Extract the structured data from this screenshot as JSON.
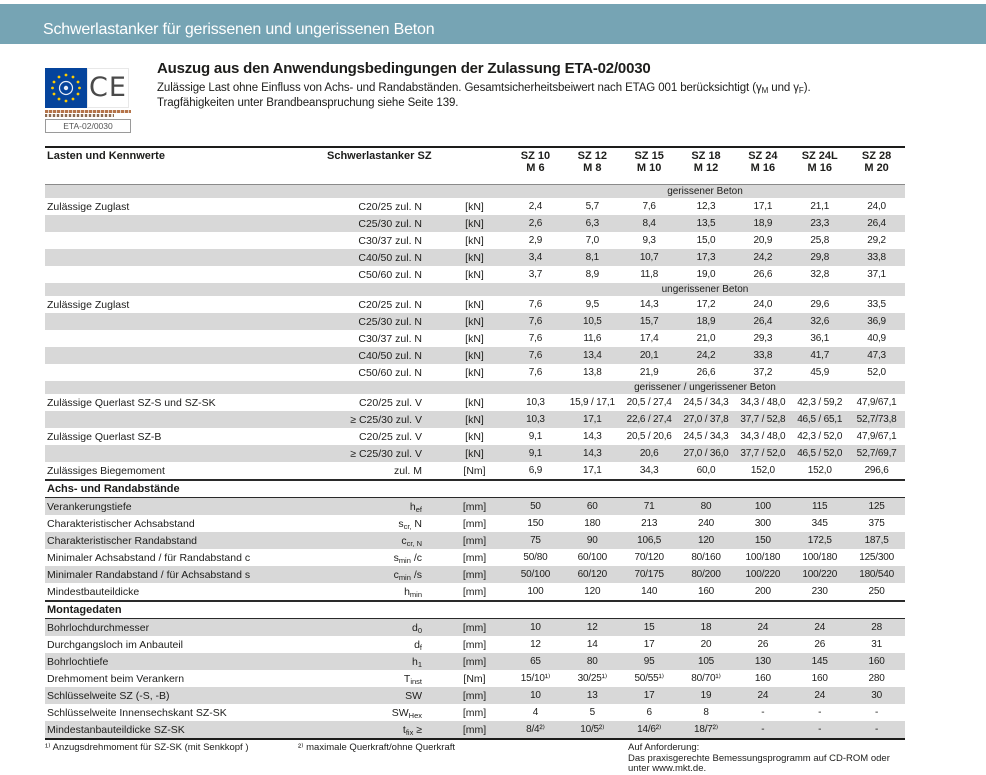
{
  "page": {
    "banner_title": "Schwerlastanker für gerissenen und ungerissenen Beton",
    "accent_color": "#76a4b4",
    "shade_color": "#d8d8d8"
  },
  "approval": {
    "ce_label": "CE",
    "eta_label": "ETA-02/0030"
  },
  "intro": {
    "title": "Auszug aus den Anwendungsbedingungen der Zulassung ETA-02/0030",
    "subtitle_part1": "Zulässige Last ohne Einfluss von Achs- und Randabständen. Gesamtsicherheitsbeiwert nach ETAG 001 berücksichtigt (γ",
    "subtitle_sub1": "M",
    "subtitle_part2": " und γ",
    "subtitle_sub2": "F",
    "subtitle_part3": ").",
    "subtitle_line2": "Tragfähigkeiten unter Brandbeanspruchung siehe Seite 139."
  },
  "table": {
    "header_left": "Lasten und Kennwerte",
    "header_spec": "Schwerlastanker SZ",
    "columns": [
      {
        "l1": "SZ 10",
        "l2": "M 6"
      },
      {
        "l1": "SZ 12",
        "l2": "M 8"
      },
      {
        "l1": "SZ 15",
        "l2": "M 10"
      },
      {
        "l1": "SZ 18",
        "l2": "M 12"
      },
      {
        "l1": "SZ 24",
        "l2": "M 16"
      },
      {
        "l1": "SZ 24L",
        "l2": "M 16"
      },
      {
        "l1": "SZ 28",
        "l2": "M 20"
      }
    ],
    "rows": [
      {
        "type": "band",
        "text": "gerissener Beton"
      },
      {
        "type": "data",
        "shade": false,
        "label": "Zulässige Zuglast",
        "spec": "C20/25 zul. N",
        "unit": "[kN]",
        "values": [
          "2,4",
          "5,7",
          "7,6",
          "12,3",
          "17,1",
          "21,1",
          "24,0"
        ]
      },
      {
        "type": "data",
        "shade": true,
        "label": "",
        "spec": "C25/30 zul. N",
        "unit": "[kN]",
        "values": [
          "2,6",
          "6,3",
          "8,4",
          "13,5",
          "18,9",
          "23,3",
          "26,4"
        ]
      },
      {
        "type": "data",
        "shade": false,
        "label": "",
        "spec": "C30/37 zul. N",
        "unit": "[kN]",
        "values": [
          "2,9",
          "7,0",
          "9,3",
          "15,0",
          "20,9",
          "25,8",
          "29,2"
        ]
      },
      {
        "type": "data",
        "shade": true,
        "label": "",
        "spec": "C40/50 zul. N",
        "unit": "[kN]",
        "values": [
          "3,4",
          "8,1",
          "10,7",
          "17,3",
          "24,2",
          "29,8",
          "33,8"
        ]
      },
      {
        "type": "data",
        "shade": false,
        "label": "",
        "spec": "C50/60 zul. N",
        "unit": "[kN]",
        "values": [
          "3,7",
          "8,9",
          "11,8",
          "19,0",
          "26,6",
          "32,8",
          "37,1"
        ]
      },
      {
        "type": "band",
        "text": "ungerissener Beton"
      },
      {
        "type": "data",
        "shade": false,
        "label": "Zulässige Zuglast",
        "spec": "C20/25 zul. N",
        "unit": "[kN]",
        "values": [
          "7,6",
          "9,5",
          "14,3",
          "17,2",
          "24,0",
          "29,6",
          "33,5"
        ]
      },
      {
        "type": "data",
        "shade": true,
        "label": "",
        "spec": "C25/30 zul. N",
        "unit": "[kN]",
        "values": [
          "7,6",
          "10,5",
          "15,7",
          "18,9",
          "26,4",
          "32,6",
          "36,9"
        ]
      },
      {
        "type": "data",
        "shade": false,
        "label": "",
        "spec": "C30/37 zul. N",
        "unit": "[kN]",
        "values": [
          "7,6",
          "11,6",
          "17,4",
          "21,0",
          "29,3",
          "36,1",
          "40,9"
        ]
      },
      {
        "type": "data",
        "shade": true,
        "label": "",
        "spec": "C40/50 zul. N",
        "unit": "[kN]",
        "values": [
          "7,6",
          "13,4",
          "20,1",
          "24,2",
          "33,8",
          "41,7",
          "47,3"
        ]
      },
      {
        "type": "data",
        "shade": false,
        "label": "",
        "spec": "C50/60 zul. N",
        "unit": "[kN]",
        "values": [
          "7,6",
          "13,8",
          "21,9",
          "26,6",
          "37,2",
          "45,9",
          "52,0"
        ]
      },
      {
        "type": "band",
        "text": "gerissener / ungerissener Beton"
      },
      {
        "type": "data",
        "shade": false,
        "label": "Zulässige Querlast SZ-S und  SZ-SK",
        "spec": "C20/25 zul. V",
        "unit": "[kN]",
        "values": [
          "10,3",
          "15,9 / 17,1",
          "20,5 / 27,4",
          "24,5 / 34,3",
          "34,3 / 48,0",
          "42,3 / 59,2",
          "47,9/67,1"
        ]
      },
      {
        "type": "data",
        "shade": true,
        "label": "",
        "spec": "≥ C25/30 zul. V",
        "unit": "[kN]",
        "values": [
          "10,3",
          "17,1",
          "22,6 / 27,4",
          "27,0 / 37,8",
          "37,7 / 52,8",
          "46,5 / 65,1",
          "52,7/73,8"
        ]
      },
      {
        "type": "data",
        "shade": false,
        "label": "Zulässige Querlast SZ-B",
        "spec": "C20/25 zul. V",
        "unit": "[kN]",
        "values": [
          "9,1",
          "14,3",
          "20,5 / 20,6",
          "24,5 / 34,3",
          "34,3 / 48,0",
          "42,3 / 52,0",
          "47,9/67,1"
        ]
      },
      {
        "type": "data",
        "shade": true,
        "label": "",
        "spec": "≥ C25/30 zul. V",
        "unit": "[kN]",
        "values": [
          "9,1",
          "14,3",
          "20,6",
          "27,0 / 36,0",
          "37,7 / 52,0",
          "46,5 / 52,0",
          "52,7/69,7"
        ]
      },
      {
        "type": "data",
        "shade": false,
        "label": "Zulässiges Biegemoment",
        "spec": "zul. M",
        "unit": "[Nm]",
        "values": [
          "6,9",
          "17,1",
          "34,3",
          "60,0",
          "152,0",
          "152,0",
          "296,6"
        ]
      },
      {
        "type": "section",
        "label": "Achs- und Randabstände"
      },
      {
        "type": "data",
        "shade": true,
        "label": "Verankerungstiefe",
        "spec": {
          "pre": "h",
          "sub": "ef",
          "post": ""
        },
        "unit": "[mm]",
        "values": [
          "50",
          "60",
          "71",
          "80",
          "100",
          "115",
          "125"
        ]
      },
      {
        "type": "data",
        "shade": false,
        "label": "Charakteristischer Achsabstand",
        "spec": {
          "pre": "s",
          "sub": "cr,",
          "post": " N"
        },
        "unit": "[mm]",
        "values": [
          "150",
          "180",
          "213",
          "240",
          "300",
          "345",
          "375"
        ]
      },
      {
        "type": "data",
        "shade": true,
        "label": "Charakteristischer Randabstand",
        "spec": {
          "pre": "c",
          "sub": "cr, N",
          "post": ""
        },
        "unit": "[mm]",
        "values": [
          "75",
          "90",
          "106,5",
          "120",
          "150",
          "172,5",
          "187,5"
        ]
      },
      {
        "type": "data",
        "shade": false,
        "label": "Minimaler Achsabstand / für Randabstand c",
        "spec": {
          "pre": "s",
          "sub": "min",
          "post": " /c"
        },
        "unit": "[mm]",
        "values": [
          "50/80",
          "60/100",
          "70/120",
          "80/160",
          "100/180",
          "100/180",
          "125/300"
        ]
      },
      {
        "type": "data",
        "shade": true,
        "label": "Minimaler Randabstand / für Achsabstand s",
        "spec": {
          "pre": "c",
          "sub": "min",
          "post": " /s"
        },
        "unit": "[mm]",
        "values": [
          "50/100",
          "60/120",
          "70/175",
          "80/200",
          "100/220",
          "100/220",
          "180/540"
        ]
      },
      {
        "type": "data",
        "shade": false,
        "label": "Mindestbauteildicke",
        "spec": {
          "pre": "h",
          "sub": "min",
          "post": ""
        },
        "unit": "[mm]",
        "values": [
          "100",
          "120",
          "140",
          "160",
          "200",
          "230",
          "250"
        ]
      },
      {
        "type": "section",
        "label": "Montagedaten"
      },
      {
        "type": "data",
        "shade": true,
        "label": "Bohrlochdurchmesser",
        "spec": {
          "pre": "d",
          "sub": "0",
          "post": ""
        },
        "unit": "[mm]",
        "values": [
          "10",
          "12",
          "15",
          "18",
          "24",
          "24",
          "28"
        ]
      },
      {
        "type": "data",
        "shade": false,
        "label": "Durchgangsloch im Anbauteil",
        "spec": {
          "pre": "d",
          "sub": "f",
          "post": ""
        },
        "unit": "[mm]",
        "values": [
          "12",
          "14",
          "17",
          "20",
          "26",
          "26",
          "31"
        ]
      },
      {
        "type": "data",
        "shade": true,
        "label": "Bohrlochtiefe",
        "spec": {
          "pre": "h",
          "sub": "1",
          "post": ""
        },
        "unit": "[mm]",
        "values": [
          "65",
          "80",
          "95",
          "105",
          "130",
          "145",
          "160"
        ]
      },
      {
        "type": "data",
        "shade": false,
        "label": "Drehmoment beim Verankern",
        "spec": {
          "pre": "T",
          "sub": "inst",
          "post": ""
        },
        "unit": "[Nm]",
        "values": [
          "15/10¹⁾",
          "30/25¹⁾",
          "50/55¹⁾",
          "80/70¹⁾",
          "160",
          "160",
          "280"
        ]
      },
      {
        "type": "data",
        "shade": true,
        "label": "Schlüsselweite SZ (-S, -B)",
        "spec": "SW",
        "unit": "[mm]",
        "values": [
          "10",
          "13",
          "17",
          "19",
          "24",
          "24",
          "30"
        ]
      },
      {
        "type": "data",
        "shade": false,
        "label": "Schlüsselweite Innensechskant SZ-SK",
        "spec": {
          "pre": "SW",
          "sub": "Hex",
          "post": ""
        },
        "unit": "[mm]",
        "values": [
          "4",
          "5",
          "6",
          "8",
          "-",
          "-",
          "-"
        ]
      },
      {
        "type": "data",
        "shade": true,
        "label": "Mindestanbauteildicke SZ-SK",
        "spec": {
          "pre": "t",
          "sub": "fix",
          "post": " ≥"
        },
        "unit": "[mm]",
        "values": [
          "8/4²⁾",
          "10/5²⁾",
          "14/6²⁾",
          "18/7²⁾",
          "-",
          "-",
          "-"
        ]
      }
    ]
  },
  "footnotes": {
    "fn1": "¹⁾ Anzugsdrehmoment für SZ-SK (mit Senkkopf )",
    "fn2": "²⁾ maximale Querkraft/ohne Querkraft",
    "request_title": "Auf Anforderung:",
    "request_line1": "Das praxisgerechte Bemessungsprogramm auf CD-ROM oder",
    "request_line2": "unter www.mkt.de."
  }
}
